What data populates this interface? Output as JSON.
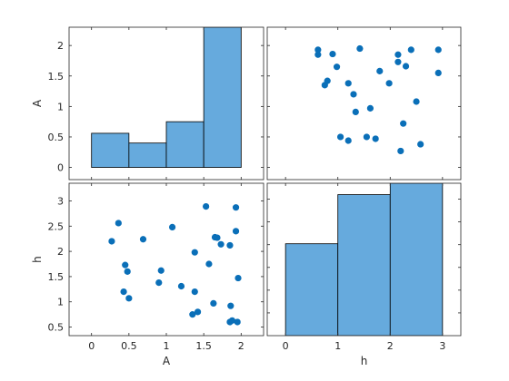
{
  "chart_data": {
    "type": "scatter-matrix",
    "variables": [
      "A",
      "h"
    ],
    "bar_color": "#66aadd",
    "marker_color": "#0a6fb8",
    "axis_color": "#262626",
    "panels": [
      {
        "name": "hist-A",
        "type": "bar",
        "row": 0,
        "col": 0,
        "xlim": [
          -0.3,
          2.3
        ],
        "ylim": [
          -0.2,
          2.3
        ],
        "yticks": [
          0,
          0.5,
          1,
          1.5,
          2
        ],
        "ylabel": "A",
        "bins": [
          {
            "start": 0.0,
            "end": 0.5,
            "value": 0.56
          },
          {
            "start": 0.5,
            "end": 1.0,
            "value": 0.4
          },
          {
            "start": 1.0,
            "end": 1.5,
            "value": 0.75
          },
          {
            "start": 1.5,
            "end": 2.0,
            "value": 2.3
          }
        ]
      },
      {
        "name": "scatter-h-vs-A",
        "type": "scatter",
        "row": 0,
        "col": 1,
        "xlim": [
          -0.35,
          3.35
        ],
        "ylim": [
          -0.2,
          2.3
        ],
        "points": [
          [
            0.62,
            1.93
          ],
          [
            0.62,
            1.85
          ],
          [
            0.9,
            1.86
          ],
          [
            1.42,
            1.95
          ],
          [
            2.15,
            1.85
          ],
          [
            2.4,
            1.93
          ],
          [
            2.92,
            1.93
          ],
          [
            0.98,
            1.65
          ],
          [
            2.15,
            1.73
          ],
          [
            2.3,
            1.66
          ],
          [
            1.8,
            1.58
          ],
          [
            2.92,
            1.55
          ],
          [
            0.75,
            1.35
          ],
          [
            0.8,
            1.42
          ],
          [
            1.2,
            1.38
          ],
          [
            1.98,
            1.38
          ],
          [
            1.3,
            1.2
          ],
          [
            2.5,
            1.08
          ],
          [
            1.62,
            0.97
          ],
          [
            1.34,
            0.91
          ],
          [
            2.25,
            0.72
          ],
          [
            1.05,
            0.5
          ],
          [
            1.2,
            0.44
          ],
          [
            1.55,
            0.5
          ],
          [
            1.72,
            0.47
          ],
          [
            2.58,
            0.38
          ],
          [
            2.2,
            0.27
          ]
        ]
      },
      {
        "name": "scatter-A-vs-h",
        "type": "scatter",
        "row": 1,
        "col": 0,
        "xlim": [
          -0.3,
          2.3
        ],
        "ylim": [
          0.33,
          3.35
        ],
        "xticks": [
          0,
          0.5,
          1,
          1.5,
          2
        ],
        "yticks": [
          0.5,
          1,
          1.5,
          2,
          2.5,
          3
        ],
        "xlabel": "A",
        "ylabel": "h",
        "points": [
          [
            0.27,
            2.2
          ],
          [
            0.36,
            2.56
          ],
          [
            0.69,
            2.24
          ],
          [
            1.08,
            2.48
          ],
          [
            1.53,
            2.89
          ],
          [
            1.93,
            2.87
          ],
          [
            1.65,
            2.28
          ],
          [
            1.68,
            2.27
          ],
          [
            1.73,
            2.14
          ],
          [
            1.85,
            2.12
          ],
          [
            1.93,
            2.4
          ],
          [
            1.38,
            1.98
          ],
          [
            1.57,
            1.75
          ],
          [
            0.45,
            1.73
          ],
          [
            0.48,
            1.6
          ],
          [
            0.93,
            1.62
          ],
          [
            0.9,
            1.38
          ],
          [
            1.2,
            1.31
          ],
          [
            1.38,
            1.2
          ],
          [
            1.96,
            1.47
          ],
          [
            0.43,
            1.2
          ],
          [
            0.5,
            1.07
          ],
          [
            1.63,
            0.97
          ],
          [
            1.86,
            0.92
          ],
          [
            1.35,
            0.75
          ],
          [
            1.42,
            0.8
          ],
          [
            1.85,
            0.6
          ],
          [
            1.88,
            0.63
          ],
          [
            1.95,
            0.6
          ]
        ]
      },
      {
        "name": "hist-h",
        "type": "bar",
        "row": 1,
        "col": 1,
        "xlim": [
          -0.35,
          3.35
        ],
        "ylim": [
          0.0,
          3.35
        ],
        "xticks": [
          0,
          1,
          2,
          3
        ],
        "xlabel": "h",
        "bins": [
          {
            "start": 0.0,
            "end": 1.0,
            "value": 2.02
          },
          {
            "start": 1.0,
            "end": 2.0,
            "value": 3.1
          },
          {
            "start": 2.0,
            "end": 3.0,
            "value": 3.35
          }
        ]
      }
    ]
  }
}
